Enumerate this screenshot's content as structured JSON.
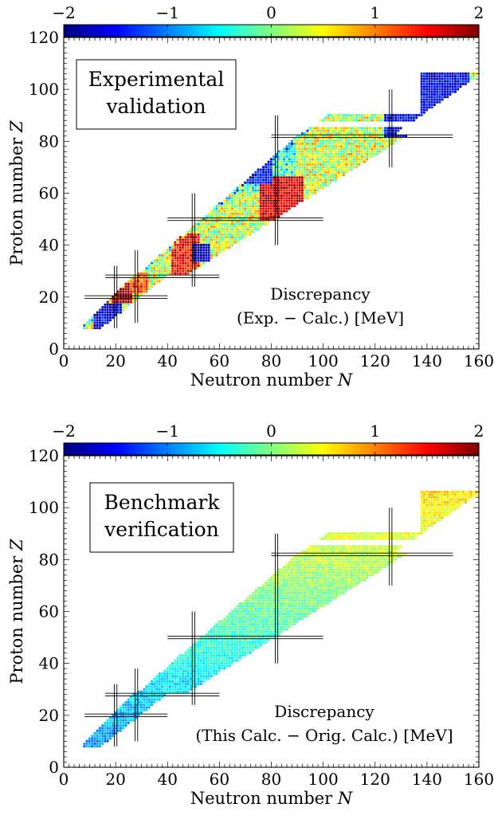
{
  "chart_data": [
    {
      "type": "heatmap",
      "title": "",
      "box_label": [
        "Experimental",
        "validation"
      ],
      "annotation": [
        "Discrepancy",
        "(Exp. − Calc.)  [MeV]"
      ],
      "xlabel": "Neutron number N",
      "ylabel": "Proton number Z",
      "xlim": [
        0,
        160
      ],
      "ylim": [
        0,
        120
      ],
      "xticks": [
        0,
        20,
        40,
        60,
        80,
        100,
        120,
        140,
        160
      ],
      "yticks": [
        0,
        20,
        40,
        60,
        80,
        100,
        120
      ],
      "colorbar": {
        "range": [
          -2,
          2
        ],
        "ticks": [
          "−2",
          "−1",
          "0",
          "1",
          "2"
        ],
        "colormap": "jet",
        "position": "top"
      },
      "magic_numbers": {
        "N": [
          20,
          28,
          50,
          82,
          126
        ],
        "Z": [
          20,
          28,
          50,
          82
        ]
      },
      "chart_of_nuclides": {
        "z_range": [
          8,
          106
        ],
        "n_min_approx": [
          8,
          160
        ]
      },
      "discrepancy_regions": [
        {
          "N": [
            12,
            22
          ],
          "Z": [
            8,
            18
          ],
          "value": -1.6
        },
        {
          "N": [
            16,
            26
          ],
          "Z": [
            18,
            26
          ],
          "value": 2.0
        },
        {
          "N": [
            26,
            32
          ],
          "Z": [
            22,
            30
          ],
          "value": 1.2
        },
        {
          "N": [
            42,
            52
          ],
          "Z": [
            28,
            44
          ],
          "value": 1.5
        },
        {
          "N": [
            50,
            56
          ],
          "Z": [
            34,
            40
          ],
          "value": -1.8
        },
        {
          "N": [
            76,
            92
          ],
          "Z": [
            50,
            66
          ],
          "value": 1.7
        },
        {
          "N": [
            56,
            80
          ],
          "Z": [
            64,
            82
          ],
          "value": -1.5
        },
        {
          "N": [
            124,
            156
          ],
          "Z": [
            82,
            106
          ],
          "value": -1.6
        }
      ]
    },
    {
      "type": "heatmap",
      "title": "",
      "box_label": [
        "Benchmark",
        "verification"
      ],
      "annotation": [
        "Discrepancy",
        "(This Calc. − Orig. Calc.)  [MeV]"
      ],
      "xlabel": "Neutron number N",
      "ylabel": "Proton number Z",
      "xlim": [
        0,
        160
      ],
      "ylim": [
        0,
        120
      ],
      "xticks": [
        0,
        20,
        40,
        60,
        80,
        100,
        120,
        140,
        160
      ],
      "yticks": [
        0,
        20,
        40,
        60,
        80,
        100,
        120
      ],
      "colorbar": {
        "range": [
          -2,
          2
        ],
        "ticks": [
          "−2",
          "−1",
          "0",
          "1",
          "2"
        ],
        "colormap": "jet",
        "position": "top"
      },
      "magic_numbers": {
        "N": [
          20,
          28,
          50,
          82,
          126
        ],
        "Z": [
          20,
          28,
          50,
          82
        ]
      },
      "chart_of_nuclides": {
        "z_range": [
          8,
          106
        ],
        "n_min_approx": [
          8,
          160
        ]
      },
      "discrepancy_trend": "about -1 for light nuclei rising to about +0.6 for heavy nuclei"
    }
  ]
}
